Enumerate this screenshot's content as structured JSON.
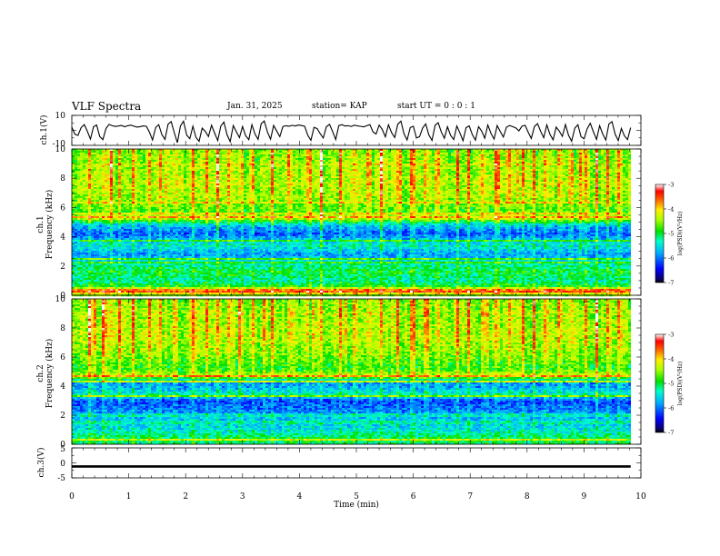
{
  "header": {
    "title": "VLF Spectra",
    "date": "Jan. 31, 2025",
    "station": "station= KAP",
    "start": "start  UT =  0 : 0  : 1"
  },
  "chart_data": [
    {
      "type": "line",
      "panel": "channel-1-waveform",
      "ylabel": "ch.1(V)",
      "ylim": [
        -10,
        10
      ],
      "yticks": [
        "10",
        "-10"
      ],
      "xlim": [
        0,
        10
      ],
      "data_extent_min": [
        0,
        9.82
      ],
      "values": [
        2.1,
        -2.6,
        -3.4,
        1.8,
        3.9,
        -0.6,
        -5.8,
        2.4,
        3.6,
        -4.1,
        -6.2,
        1.3,
        4.0,
        3.1,
        2.6,
        2.9,
        3.3,
        2.4,
        3.1,
        3.5,
        2.8,
        2.2,
        2.5,
        3.0,
        2.7,
        -1.2,
        -6.4,
        1.9,
        3.8,
        -2.7,
        -6.0,
        4.1,
        5.9,
        -1.5,
        -8.2,
        3.0,
        6.1,
        -3.2,
        -5.5,
        2.8,
        -4.7,
        -7.3,
        1.5,
        -0.7,
        -4.1,
        3.4,
        -1.8,
        -6.8,
        2.9,
        5.5,
        -3.0,
        -7.5,
        3.2,
        -0.9,
        -4.8,
        2.6,
        -3.5,
        -6.2,
        3.8,
        -2.4,
        -6.0,
        4.4,
        6.3,
        -1.1,
        -5.9,
        3.3,
        -0.5,
        -4.2,
        2.6,
        3.1,
        2.8,
        3.4,
        2.9,
        3.6,
        3.2,
        2.7,
        -3.3,
        -6.6,
        2.0,
        1.2,
        -2.2,
        -5.1,
        2.4,
        4.0,
        -0.8,
        -6.1,
        3.2,
        3.8,
        2.9,
        3.1,
        2.6,
        3.5,
        3.0,
        2.7,
        2.3,
        3.1,
        3.8,
        -1.0,
        -2.4,
        3.5,
        0.6,
        -4.3,
        3.7,
        -1.6,
        -4.8,
        4.1,
        6.2,
        -2.3,
        -6.4,
        1.9,
        2.7,
        -5.1,
        -4.2,
        1.6,
        4.3,
        -3.0,
        -6.7,
        3.4,
        5.1,
        -1.0,
        -5.3,
        2.4,
        -3.4,
        -6.1,
        2.9,
        -1.7,
        -6.9,
        1.8,
        3.0,
        -2.9,
        -6.5,
        2.5,
        -0.4,
        -5.2,
        3.6,
        -1.9,
        -5.8,
        3.2,
        -0.8,
        -4.5,
        2.1,
        3.2,
        2.5,
        1.6,
        -0.3,
        2.8,
        3.4,
        -1.2,
        -5.4,
        2.6,
        4.5,
        -0.6,
        -4.9,
        3.7,
        -2.6,
        -6.3,
        2.2,
        -0.5,
        -4.0,
        3.9,
        -3.3,
        -7.2,
        1.5,
        3.8,
        -4.2,
        -5.6,
        1.1,
        4.7,
        -0.9,
        -6.0,
        3.1,
        -2.4,
        -6.5,
        4.3,
        5.8,
        -2.6,
        -6.8,
        1.3,
        -3.7,
        -6.1,
        1.8
      ]
    },
    {
      "type": "heatmap",
      "panel": "channel-1-spectrogram",
      "ylabel": "Frequency (kHz)",
      "channel": "ch.1",
      "ylim": [
        0,
        10
      ],
      "xlim": [
        0,
        10
      ],
      "yticks": [
        "0",
        "2",
        "4",
        "6",
        "8",
        "10"
      ],
      "data_extent_min": [
        0,
        9.82
      ],
      "colorbar": {
        "label": "log(PSD)(V²/Hz)",
        "range": [
          -7,
          -3
        ],
        "ticks": [
          "-3",
          "-4",
          "-5",
          "-6",
          "-7"
        ]
      },
      "background_log_psd_by_freq_khz": [
        {
          "f": 0.0,
          "v": -4.6
        },
        {
          "f": 0.3,
          "v": -3.5
        },
        {
          "f": 0.6,
          "v": -4.9
        },
        {
          "f": 1.0,
          "v": -5.3
        },
        {
          "f": 1.6,
          "v": -5.0
        },
        {
          "f": 2.2,
          "v": -5.4
        },
        {
          "f": 2.8,
          "v": -5.9
        },
        {
          "f": 3.4,
          "v": -5.4
        },
        {
          "f": 4.2,
          "v": -6.1
        },
        {
          "f": 4.8,
          "v": -5.7
        },
        {
          "f": 5.3,
          "v": -4.3
        },
        {
          "f": 5.8,
          "v": -4.8
        },
        {
          "f": 6.6,
          "v": -4.5
        },
        {
          "f": 7.6,
          "v": -4.4
        },
        {
          "f": 8.6,
          "v": -4.5
        },
        {
          "f": 10.0,
          "v": -4.6
        }
      ],
      "narrowband_lines_khz": [
        {
          "f": 0.3,
          "v": -3.3
        },
        {
          "f": 2.2,
          "v": -4.5
        },
        {
          "f": 2.5,
          "v": -4.6
        },
        {
          "f": 3.75,
          "v": -4.7
        },
        {
          "f": 5.3,
          "v": -3.6
        },
        {
          "f": 5.55,
          "v": -3.9
        },
        {
          "f": 6.3,
          "v": -3.9
        },
        {
          "f": 8.9,
          "v": -4.1
        }
      ],
      "impulsive_events_min": [
        0.3,
        0.55,
        0.65,
        0.82,
        1.05,
        1.35,
        1.52,
        1.8,
        2.1,
        2.35,
        2.55,
        2.75,
        2.95,
        3.15,
        3.5,
        3.8,
        4.35,
        4.7,
        4.95,
        5.2,
        5.42,
        5.7,
        5.95,
        6.2,
        6.4,
        6.75,
        6.95,
        7.2,
        7.45,
        7.65,
        7.9,
        8.1,
        8.3,
        8.55,
        8.75,
        9.0,
        9.2,
        9.4,
        9.6
      ]
    },
    {
      "type": "heatmap",
      "panel": "channel-2-spectrogram",
      "ylabel": "Frequency (kHz)",
      "channel": "ch.2",
      "ylim": [
        0,
        10
      ],
      "xlim": [
        0,
        10
      ],
      "yticks": [
        "0",
        "2",
        "4",
        "6",
        "8",
        "10"
      ],
      "data_extent_min": [
        0,
        9.82
      ],
      "colorbar": {
        "label": "log(PSD)(V²/Hz)",
        "range": [
          -7,
          -3
        ],
        "ticks": [
          "-3",
          "-4",
          "-5",
          "-6",
          "-7"
        ]
      },
      "background_log_psd_by_freq_khz": [
        {
          "f": 0.0,
          "v": -5.2
        },
        {
          "f": 0.3,
          "v": -5.0
        },
        {
          "f": 1.0,
          "v": -5.5
        },
        {
          "f": 1.8,
          "v": -5.7
        },
        {
          "f": 2.4,
          "v": -6.0
        },
        {
          "f": 3.0,
          "v": -6.2
        },
        {
          "f": 3.4,
          "v": -5.3
        },
        {
          "f": 3.9,
          "v": -5.8
        },
        {
          "f": 4.3,
          "v": -5.9
        },
        {
          "f": 4.7,
          "v": -4.3
        },
        {
          "f": 5.2,
          "v": -4.9
        },
        {
          "f": 6.2,
          "v": -4.6
        },
        {
          "f": 7.5,
          "v": -4.4
        },
        {
          "f": 8.6,
          "v": -4.5
        },
        {
          "f": 10.0,
          "v": -4.6
        }
      ],
      "narrowband_lines_khz": [
        {
          "f": 0.3,
          "v": -4.2
        },
        {
          "f": 1.5,
          "v": -4.8
        },
        {
          "f": 2.0,
          "v": -4.7
        },
        {
          "f": 3.3,
          "v": -4.5
        },
        {
          "f": 4.3,
          "v": -4.2
        },
        {
          "f": 4.7,
          "v": -3.8
        },
        {
          "f": 9.0,
          "v": -4.2
        }
      ],
      "impulsive_events_min": [
        0.3,
        0.55,
        0.65,
        0.82,
        1.05,
        1.35,
        1.52,
        1.8,
        2.1,
        2.35,
        2.55,
        2.75,
        2.95,
        3.15,
        3.5,
        3.8,
        4.35,
        4.7,
        4.95,
        5.2,
        5.42,
        5.7,
        5.95,
        6.2,
        6.4,
        6.75,
        6.95,
        7.2,
        7.45,
        7.65,
        7.9,
        8.1,
        8.3,
        8.55,
        8.75,
        9.0,
        9.2,
        9.4,
        9.6
      ]
    },
    {
      "type": "line",
      "panel": "channel-3-waveform",
      "ylabel": "ch.3(V)",
      "ylim": [
        -5,
        5
      ],
      "yticks": [
        "5",
        "0",
        "-5"
      ],
      "xlim": [
        0,
        10
      ],
      "data_extent_min": [
        0,
        9.82
      ],
      "band_v": [
        -1.6,
        -0.8
      ],
      "xlabel": "Time (min)",
      "xticks": [
        "0",
        "1",
        "2",
        "3",
        "4",
        "5",
        "6",
        "7",
        "8",
        "9",
        "10"
      ]
    }
  ]
}
